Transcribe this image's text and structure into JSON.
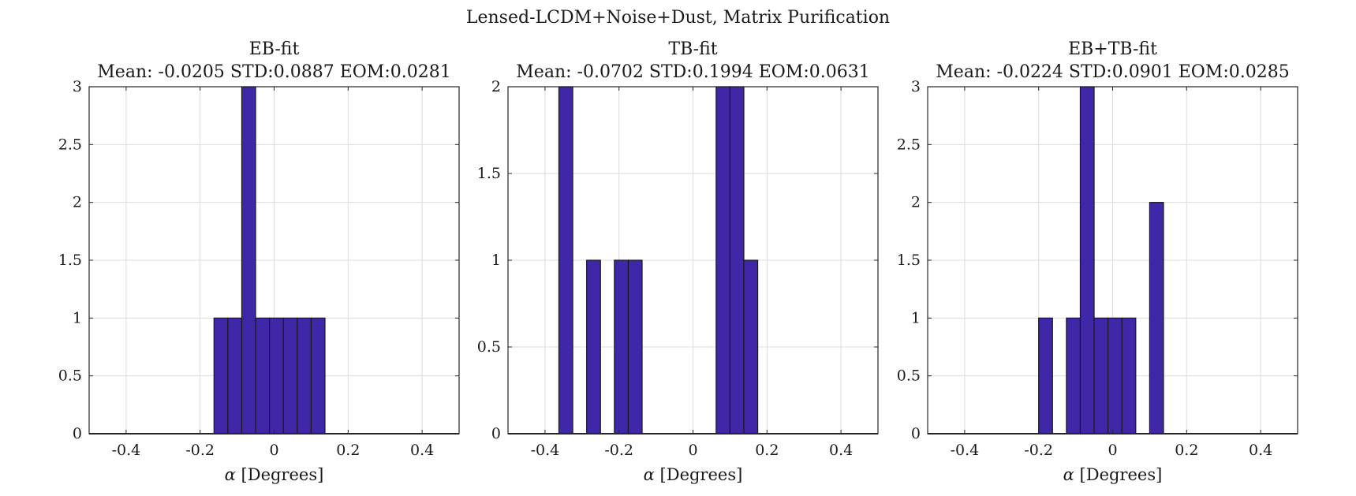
{
  "figure": {
    "suptitle": "Lensed-LCDM+Noise+Dust, Matrix Purification"
  },
  "chart_data": [
    {
      "type": "bar",
      "title": "EB-fit",
      "subtitle": "Mean: -0.0205 STD:0.0887 EOM:0.0281",
      "xlabel_symbol": "α",
      "xlabel": "[Degrees]",
      "ylabel": "",
      "xlim": [
        -0.5,
        0.5
      ],
      "ylim": [
        0,
        3
      ],
      "xticks": [
        "-0.4",
        "-0.2",
        "0",
        "0.2",
        "0.4"
      ],
      "xtick_values": [
        -0.4,
        -0.2,
        0,
        0.2,
        0.4
      ],
      "yticks": [
        "0",
        "0.5",
        "1",
        "1.5",
        "2",
        "2.5",
        "3"
      ],
      "ytick_values": [
        0,
        0.5,
        1,
        1.5,
        2,
        2.5,
        3
      ],
      "grid": true,
      "bin_width": 0.0375,
      "bins": [
        {
          "x0": -0.1625,
          "x1": -0.125,
          "count": 1
        },
        {
          "x0": -0.125,
          "x1": -0.0875,
          "count": 1
        },
        {
          "x0": -0.0875,
          "x1": -0.05,
          "count": 3
        },
        {
          "x0": -0.05,
          "x1": -0.0125,
          "count": 1
        },
        {
          "x0": -0.0125,
          "x1": 0.025,
          "count": 1
        },
        {
          "x0": 0.025,
          "x1": 0.0625,
          "count": 1
        },
        {
          "x0": 0.0625,
          "x1": 0.1,
          "count": 1
        },
        {
          "x0": 0.1,
          "x1": 0.1375,
          "count": 1
        }
      ]
    },
    {
      "type": "bar",
      "title": "TB-fit",
      "subtitle": "Mean: -0.0702 STD:0.1994 EOM:0.0631",
      "xlabel_symbol": "α",
      "xlabel": "[Degrees]",
      "ylabel": "",
      "xlim": [
        -0.5,
        0.5
      ],
      "ylim": [
        0,
        2
      ],
      "xticks": [
        "-0.4",
        "-0.2",
        "0",
        "0.2",
        "0.4"
      ],
      "xtick_values": [
        -0.4,
        -0.2,
        0,
        0.2,
        0.4
      ],
      "yticks": [
        "0",
        "0.5",
        "1",
        "1.5",
        "2"
      ],
      "ytick_values": [
        0,
        0.5,
        1,
        1.5,
        2
      ],
      "grid": true,
      "bin_width": 0.0375,
      "bins": [
        {
          "x0": -0.3625,
          "x1": -0.325,
          "count": 2
        },
        {
          "x0": -0.2875,
          "x1": -0.25,
          "count": 1
        },
        {
          "x0": -0.2125,
          "x1": -0.175,
          "count": 1
        },
        {
          "x0": -0.175,
          "x1": -0.1375,
          "count": 1
        },
        {
          "x0": 0.0625,
          "x1": 0.1,
          "count": 2
        },
        {
          "x0": 0.1,
          "x1": 0.1375,
          "count": 2
        },
        {
          "x0": 0.1375,
          "x1": 0.175,
          "count": 1
        }
      ]
    },
    {
      "type": "bar",
      "title": "EB+TB-fit",
      "subtitle": "Mean: -0.0224 STD:0.0901 EOM:0.0285",
      "xlabel_symbol": "α",
      "xlabel": "[Degrees]",
      "ylabel": "",
      "xlim": [
        -0.5,
        0.5
      ],
      "ylim": [
        0,
        3
      ],
      "xticks": [
        "-0.4",
        "-0.2",
        "0",
        "0.2",
        "0.4"
      ],
      "xtick_values": [
        -0.4,
        -0.2,
        0,
        0.2,
        0.4
      ],
      "yticks": [
        "0",
        "0.5",
        "1",
        "1.5",
        "2",
        "2.5",
        "3"
      ],
      "ytick_values": [
        0,
        0.5,
        1,
        1.5,
        2,
        2.5,
        3
      ],
      "grid": true,
      "bin_width": 0.0375,
      "bins": [
        {
          "x0": -0.2,
          "x1": -0.1625,
          "count": 1
        },
        {
          "x0": -0.125,
          "x1": -0.0875,
          "count": 1
        },
        {
          "x0": -0.0875,
          "x1": -0.05,
          "count": 3
        },
        {
          "x0": -0.05,
          "x1": -0.0125,
          "count": 1
        },
        {
          "x0": -0.0125,
          "x1": 0.025,
          "count": 1
        },
        {
          "x0": 0.025,
          "x1": 0.0625,
          "count": 1
        },
        {
          "x0": 0.1,
          "x1": 0.1375,
          "count": 2
        }
      ]
    }
  ],
  "colors": {
    "bar_fill": "#3f27a8",
    "bar_edge": "#1a1a1a",
    "grid": "#dcdcdc",
    "axis": "#262626"
  }
}
